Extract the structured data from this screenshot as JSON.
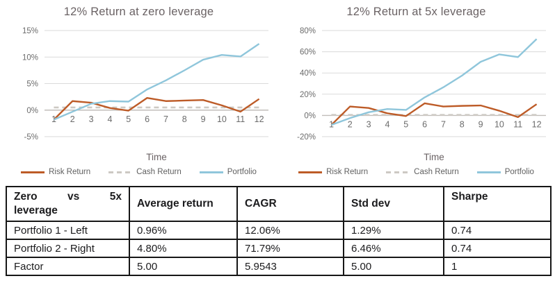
{
  "chart_data": [
    {
      "type": "line",
      "title": "12% Return at zero leverage",
      "xlabel": "Time",
      "categories": [
        1,
        2,
        3,
        4,
        5,
        6,
        7,
        8,
        9,
        10,
        11,
        12
      ],
      "ylim": [
        -5,
        15
      ],
      "yticks": [
        15,
        10,
        5,
        0,
        -5
      ],
      "ytick_suffix": "%",
      "grid": true,
      "legend_position": "bottom",
      "series": [
        {
          "name": "Risk Return",
          "color": "#BD5B27",
          "dash": false,
          "values": [
            -1.8,
            1.7,
            1.4,
            0.4,
            -0.1,
            2.3,
            1.7,
            1.8,
            1.9,
            0.9,
            -0.3,
            2.1
          ]
        },
        {
          "name": "Cash Return",
          "color": "#CDC9C3",
          "dash": true,
          "values": [
            0.5,
            0.5,
            0.5,
            0.5,
            0.5,
            0.5,
            0.5,
            0.5,
            0.5,
            0.5,
            0.5,
            0.5
          ]
        },
        {
          "name": "Portfolio",
          "color": "#8FC6DB",
          "dash": false,
          "values": [
            -1.8,
            -0.3,
            1.2,
            1.7,
            1.6,
            3.9,
            5.6,
            7.5,
            9.5,
            10.4,
            10.1,
            12.5
          ]
        }
      ]
    },
    {
      "type": "line",
      "title": "12% Return at 5x leverage",
      "xlabel": "Time",
      "categories": [
        1,
        2,
        3,
        4,
        5,
        6,
        7,
        8,
        9,
        10,
        11,
        12
      ],
      "ylim": [
        -20,
        80
      ],
      "yticks": [
        80,
        60,
        40,
        20,
        0,
        -20
      ],
      "ytick_suffix": "%",
      "grid": true,
      "legend_position": "bottom",
      "series": [
        {
          "name": "Risk Return",
          "color": "#BD5B27",
          "dash": false,
          "values": [
            -9.0,
            8.4,
            7.0,
            2.0,
            -0.6,
            11.4,
            8.4,
            9.0,
            9.4,
            4.4,
            -1.6,
            10.6
          ]
        },
        {
          "name": "Cash Return",
          "color": "#CDC9C3",
          "dash": true,
          "values": [
            0.5,
            0.5,
            0.5,
            0.5,
            0.5,
            0.5,
            0.5,
            0.5,
            0.5,
            0.5,
            0.5,
            0.5
          ]
        },
        {
          "name": "Portfolio",
          "color": "#8FC6DB",
          "dash": false,
          "values": [
            -9.0,
            -2.5,
            3.0,
            6.0,
            5.2,
            17.0,
            26.5,
            37.5,
            50.5,
            57.5,
            55.0,
            72.0
          ]
        }
      ]
    }
  ],
  "colors": {
    "risk_return": "#BD5B27",
    "cash_return": "#CDC9C3",
    "portfolio": "#8FC6DB",
    "gridline": "#DADADA",
    "zero_axis": "#C0BDB9",
    "axis_text": "#6B6B6B",
    "title_text": "#6A6264",
    "table_text": "#1B1B1D",
    "table_border": "#161616"
  },
  "table": {
    "corner_line1": "Zero vs 5x",
    "corner_line2": "leverage",
    "columns": [
      "Average return",
      "CAGR",
      "Std dev",
      "Sharpe"
    ],
    "rows": [
      {
        "label": "Portfolio 1 - Left",
        "values": [
          "0.96%",
          "12.06%",
          "1.29%",
          "0.74"
        ]
      },
      {
        "label": "Portfolio 2 - Right",
        "values": [
          "4.80%",
          "71.79%",
          "6.46%",
          "0.74"
        ]
      },
      {
        "label": "Factor",
        "values": [
          "5.00",
          "5.9543",
          "5.00",
          "1"
        ]
      }
    ]
  }
}
